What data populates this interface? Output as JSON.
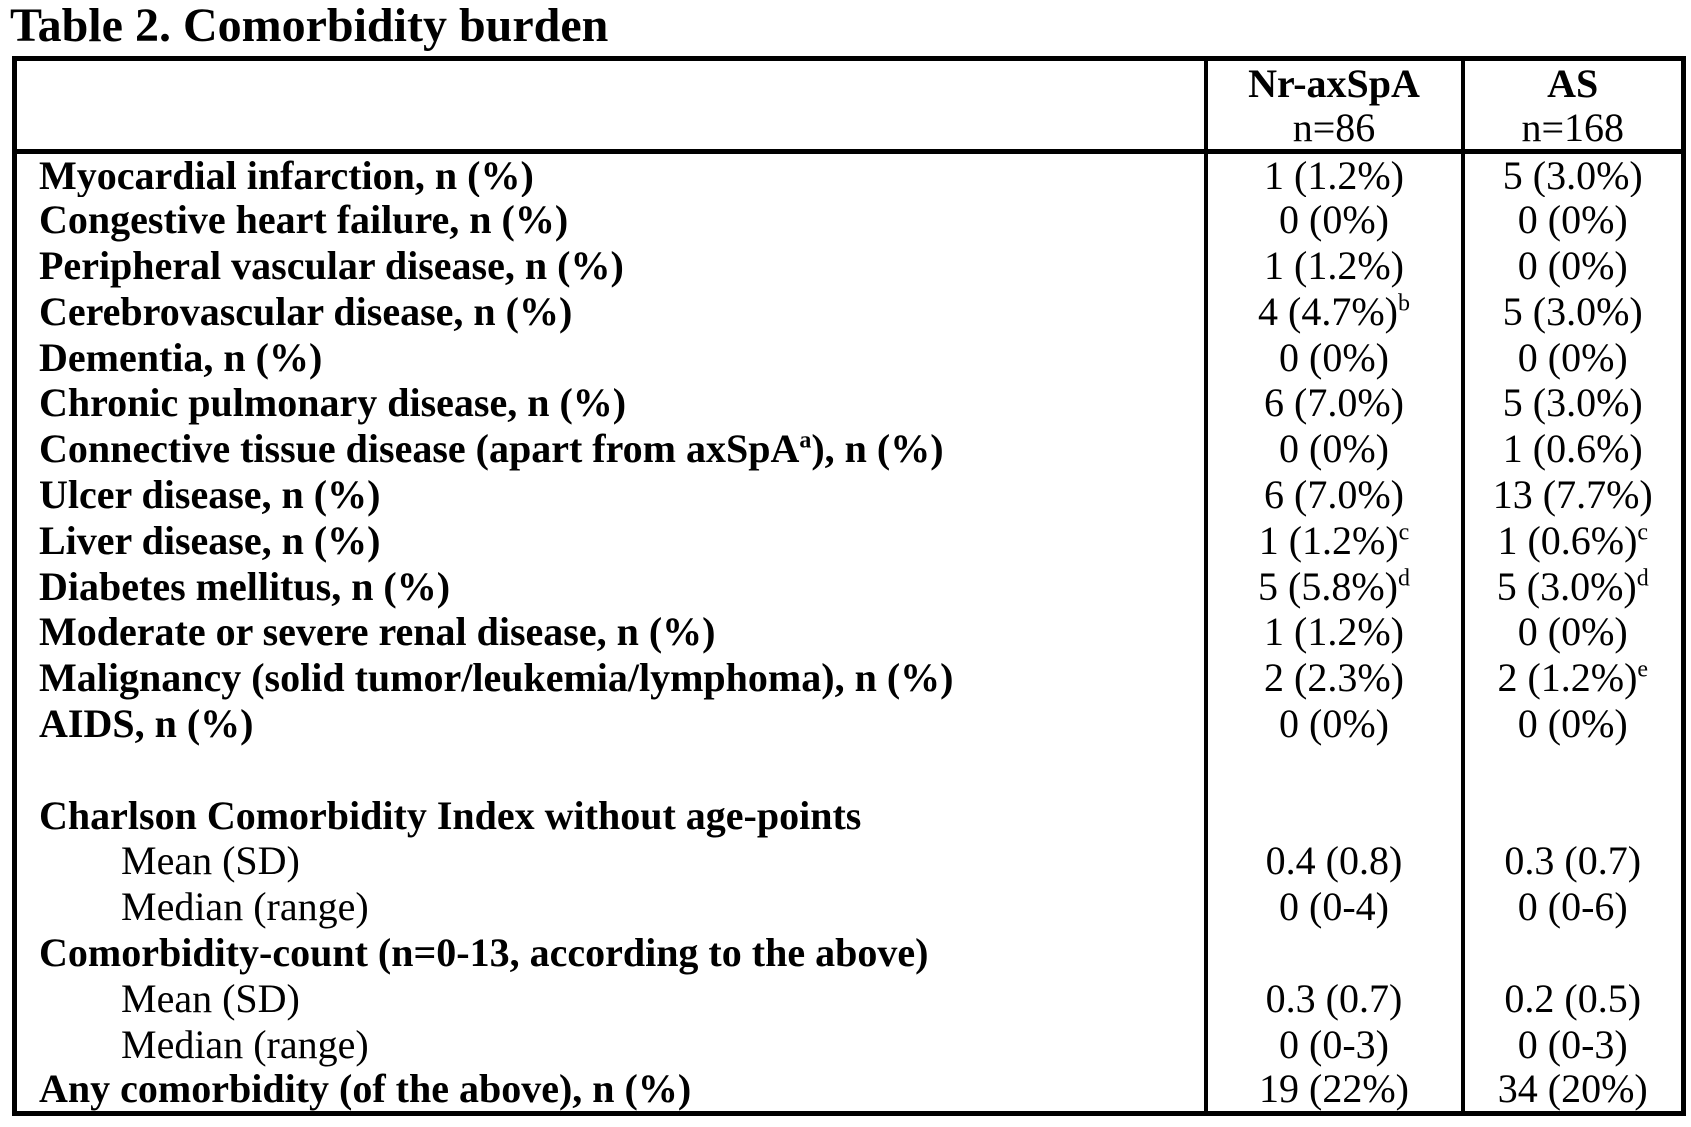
{
  "title": "Table 2. Comorbidity burden",
  "table": {
    "columns": [
      {
        "label": "",
        "sublabel": ""
      },
      {
        "label": "Nr-axSpA",
        "sublabel": "n=86"
      },
      {
        "label": "AS",
        "sublabel": "n=168"
      }
    ],
    "rows": [
      {
        "style": "item",
        "label": "Myocardial infarction, n (%)",
        "nr": "1 (1.2%)",
        "as": "5 (3.0%)"
      },
      {
        "style": "item",
        "label": "Congestive heart failure, n (%)",
        "nr": "0 (0%)",
        "as": "0 (0%)"
      },
      {
        "style": "item",
        "label": "Peripheral vascular disease, n (%)",
        "nr": "1 (1.2%)",
        "as": "0 (0%)"
      },
      {
        "style": "item",
        "label": "Cerebrovascular disease, n (%)",
        "nr": "4 (4.7%)",
        "nr_sup": "b",
        "as": "5 (3.0%)"
      },
      {
        "style": "item",
        "label": "Dementia, n (%)",
        "nr": "0 (0%)",
        "as": "0 (0%)"
      },
      {
        "style": "item",
        "label": "Chronic pulmonary disease, n (%)",
        "nr": "6 (7.0%)",
        "as": "5 (3.0%)"
      },
      {
        "style": "item",
        "label": "Connective tissue disease (apart from axSpA",
        "label_sup": "a",
        "label_post": "), n (%)",
        "nr": "0 (0%)",
        "as": "1 (0.6%)"
      },
      {
        "style": "item",
        "label": "Ulcer disease, n (%)",
        "nr": "6 (7.0%)",
        "as": "13 (7.7%)"
      },
      {
        "style": "item",
        "label": "Liver disease, n (%)",
        "nr": "1 (1.2%)",
        "nr_sup": "c",
        "as": "1 (0.6%)",
        "as_sup": "c"
      },
      {
        "style": "item",
        "label": "Diabetes mellitus, n (%)",
        "nr": "5 (5.8%)",
        "nr_sup": "d",
        "as": "5 (3.0%)",
        "as_sup": "d"
      },
      {
        "style": "item",
        "label": "Moderate or severe renal disease, n (%)",
        "nr": "1 (1.2%)",
        "as": "0 (0%)"
      },
      {
        "style": "item",
        "label": "Malignancy (solid tumor/leukemia/lymphoma), n (%)",
        "nr": "2 (2.3%)",
        "as": "2 (1.2%)",
        "as_sup": "e"
      },
      {
        "style": "item",
        "label": "AIDS, n (%)",
        "nr": "0 (0%)",
        "as": "0 (0%)"
      },
      {
        "style": "spacer",
        "label": "",
        "nr": "",
        "as": ""
      },
      {
        "style": "section",
        "label": "Charlson Comorbidity Index without age-points",
        "nr": "",
        "as": ""
      },
      {
        "style": "sub",
        "label": "Mean (SD)",
        "nr": "0.4 (0.8)",
        "as": "0.3 (0.7)"
      },
      {
        "style": "sub",
        "label": "Median (range)",
        "nr": "0 (0-4)",
        "as": "0 (0-6)"
      },
      {
        "style": "section",
        "label": "Comorbidity-count (n=0-13, according to the above)",
        "nr": "",
        "as": ""
      },
      {
        "style": "sub",
        "label": "Mean (SD)",
        "nr": "0.3 (0.7)",
        "as": "0.2 (0.5)"
      },
      {
        "style": "sub",
        "label": "Median (range)",
        "nr": "0 (0-3)",
        "as": "0 (0-3)"
      },
      {
        "style": "item",
        "label": "Any comorbidity (of the above), n (%)",
        "nr": "19 (22%)",
        "as": "34 (20%)"
      }
    ]
  }
}
